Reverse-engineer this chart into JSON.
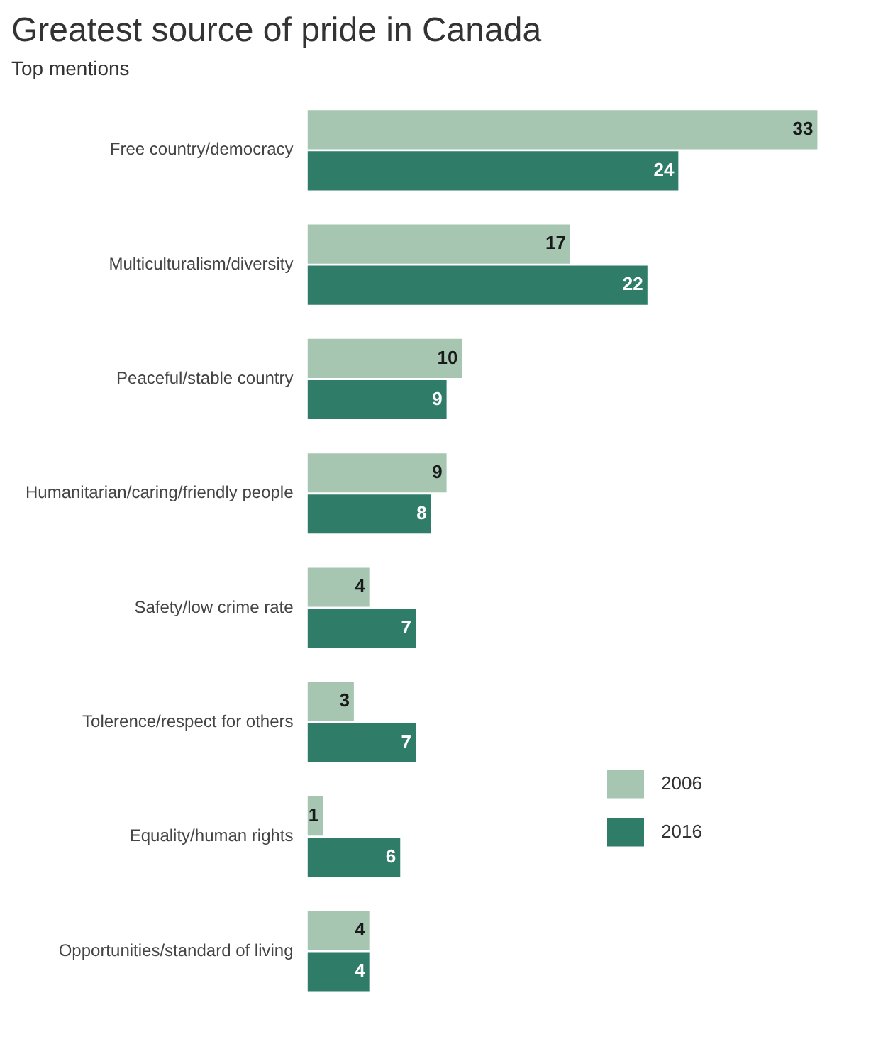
{
  "chart_data": {
    "type": "bar",
    "orientation": "horizontal",
    "title": "Greatest source of pride in Canada",
    "subtitle": "Top mentions",
    "categories": [
      "Free country/democracy",
      "Multiculturalism/diversity",
      "Peaceful/stable country",
      "Humanitarian/caring/friendly people",
      "Safety/low crime rate",
      "Tolerence/respect for others",
      "Equality/human rights",
      "Opportunities/standard of living"
    ],
    "series": [
      {
        "name": "2006",
        "color": "#a6c6b2",
        "values": [
          33,
          17,
          10,
          9,
          4,
          3,
          1,
          4
        ]
      },
      {
        "name": "2016",
        "color": "#2f7d68",
        "values": [
          24,
          22,
          9,
          8,
          7,
          7,
          6,
          4
        ]
      }
    ],
    "data_labels": true,
    "legend": "bottom right",
    "grid": false
  }
}
